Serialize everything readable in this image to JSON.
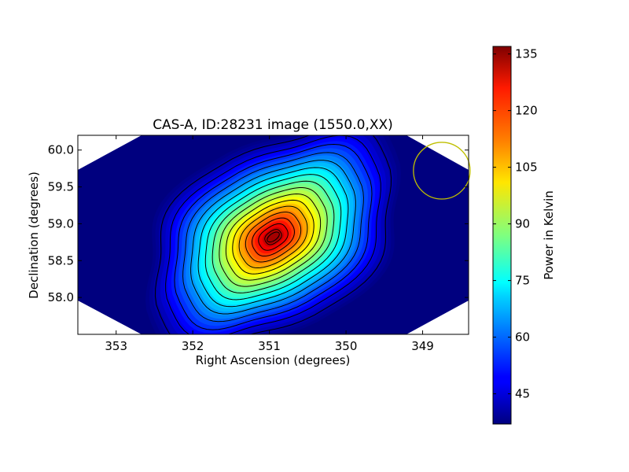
{
  "chart_data": {
    "type": "heatmap",
    "title": "CAS-A, ID:28231 image (1550.0,XX)",
    "xlabel": "Right Ascension (degrees)",
    "ylabel": "Declination (degrees)",
    "xlim": [
      353.5,
      348.4
    ],
    "ylim": [
      57.5,
      60.2
    ],
    "x_ticks": [
      353,
      352,
      351,
      350,
      349
    ],
    "x_tick_labels": [
      "353",
      "352",
      "351",
      "350",
      "349"
    ],
    "y_ticks": [
      58.0,
      58.5,
      59.0,
      59.5,
      60.0
    ],
    "y_tick_labels": [
      "58.0",
      "58.5",
      "59.0",
      "59.5",
      "60.0"
    ],
    "colorbar": {
      "label": "Power in Kelvin",
      "colormap": "jet",
      "range": [
        37,
        137
      ],
      "ticks": [
        45,
        60,
        75,
        90,
        105,
        120,
        135
      ],
      "tick_labels": [
        "45",
        "60",
        "75",
        "90",
        "105",
        "120",
        "135"
      ]
    },
    "source": {
      "peak_ra": 350.95,
      "peak_dec": 58.82,
      "peak_value": 137,
      "background_value": 38,
      "orientation_deg": -35
    },
    "beam_circle": {
      "ra": 348.75,
      "dec": 59.72,
      "radius_deg": 0.37,
      "color": "#bfbf00"
    },
    "contour_levels": [
      42,
      48,
      54,
      60,
      66,
      72,
      78,
      84,
      90,
      96,
      102,
      108,
      114,
      120,
      126,
      132
    ]
  }
}
